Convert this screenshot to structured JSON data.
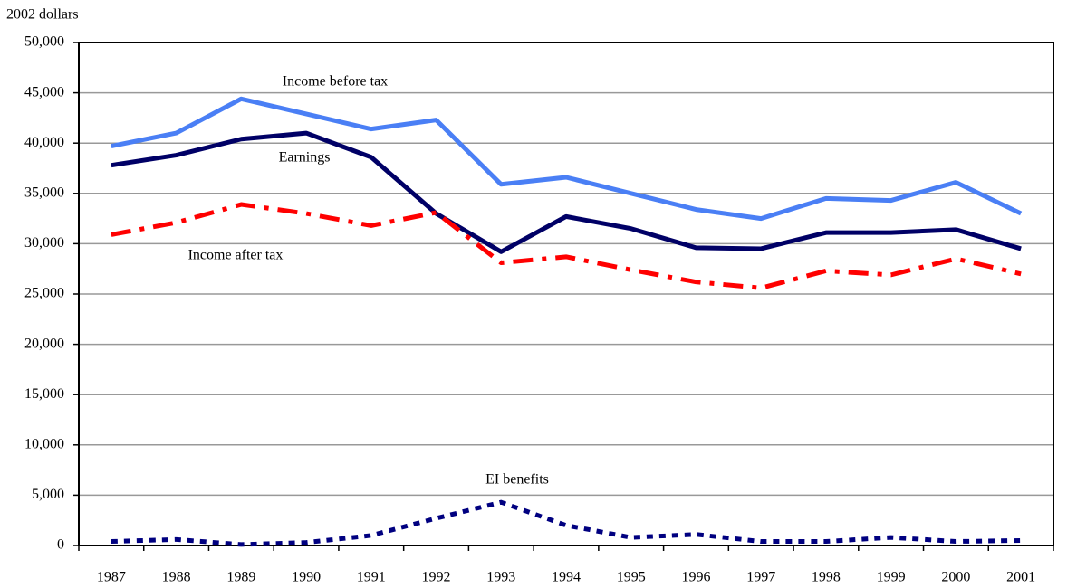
{
  "chart_data": {
    "type": "line",
    "y_label": "2002 dollars",
    "categories": [
      "1987",
      "1988",
      "1989",
      "1990",
      "1991",
      "1992",
      "1993",
      "1994",
      "1995",
      "1996",
      "1997",
      "1998",
      "1999",
      "2000",
      "2001"
    ],
    "ylim": [
      0,
      50000
    ],
    "yticks": [
      0,
      {
        "value": 5000,
        "label": "5,000"
      },
      {
        "value": 10000,
        "label": "10,000"
      },
      {
        "value": 15000,
        "label": "15,000"
      },
      {
        "value": 20000,
        "label": "20,000"
      },
      {
        "value": 25000,
        "label": "25,000"
      },
      {
        "value": 30000,
        "label": "30,000"
      },
      {
        "value": 35000,
        "label": "35,000"
      },
      {
        "value": 40000,
        "label": "40,000"
      },
      {
        "value": 45000,
        "label": "45,000"
      },
      {
        "value": 50000,
        "label": "50,000"
      }
    ],
    "grid": true,
    "series": [
      {
        "name": "Income before tax",
        "color": "#4a7ff5",
        "dash": "solid",
        "values": [
          39700,
          41000,
          44400,
          42900,
          41400,
          42300,
          35900,
          36600,
          35000,
          33400,
          32500,
          34500,
          34300,
          36100,
          33000
        ]
      },
      {
        "name": "Earnings",
        "color": "#000066",
        "dash": "solid",
        "values": [
          37800,
          38800,
          40400,
          41000,
          38600,
          33000,
          29200,
          32700,
          31500,
          29600,
          29500,
          31100,
          31100,
          31400,
          29500
        ]
      },
      {
        "name": "Income after tax",
        "color": "#ff0000",
        "dash": "dashdot",
        "values": [
          30900,
          32100,
          33900,
          33000,
          31800,
          33100,
          28100,
          28700,
          27400,
          26200,
          25600,
          27300,
          26900,
          28500,
          27000
        ]
      },
      {
        "name": "EI benefits",
        "color": "#000080",
        "dash": "dot",
        "values": [
          400,
          600,
          100,
          300,
          1000,
          2700,
          4300,
          2000,
          800,
          1100,
          400,
          400,
          800,
          400,
          500
        ]
      }
    ]
  }
}
